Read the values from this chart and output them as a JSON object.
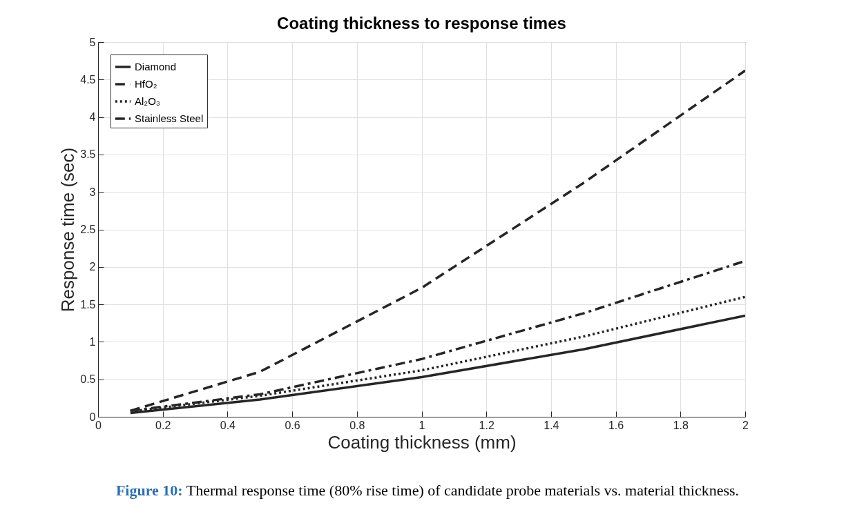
{
  "chart_data": {
    "type": "line",
    "title": "Coating thickness to response times",
    "xlabel": "Coating thickness (mm)",
    "ylabel": "Response time (sec)",
    "x": [
      0.1,
      0.5,
      1,
      1.5,
      2
    ],
    "series": [
      {
        "name": "Diamond",
        "color": "#262626",
        "line_style": "solid",
        "values": [
          0.05,
          0.23,
          0.53,
          0.9,
          1.35
        ]
      },
      {
        "name": "HfO₂",
        "color": "#262626",
        "line_style": "dashed",
        "values": [
          0.08,
          0.6,
          1.72,
          3.12,
          4.62
        ]
      },
      {
        "name": "Al₂O₃",
        "color": "#262626",
        "line_style": "dotted",
        "values": [
          0.07,
          0.28,
          0.62,
          1.07,
          1.6
        ]
      },
      {
        "name": "Stainless Steel",
        "color": "#262626",
        "line_style": "dashdot",
        "values": [
          0.08,
          0.3,
          0.77,
          1.38,
          2.08
        ]
      }
    ],
    "xlim": [
      0,
      2
    ],
    "xticks": [
      0,
      0.2,
      0.4,
      0.6,
      0.8,
      1,
      1.2,
      1.4,
      1.6,
      1.8,
      2
    ],
    "ylim": [
      0,
      5
    ],
    "yticks": [
      0,
      0.5,
      1,
      1.5,
      2,
      2.5,
      3,
      3.5,
      4,
      4.5,
      5
    ],
    "grid": true,
    "legend": "top left",
    "marker": "none",
    "annotations": [
      "Figure 10: Thermal response time (80% rise time) of candidate probe materials vs. material thickness."
    ]
  }
}
